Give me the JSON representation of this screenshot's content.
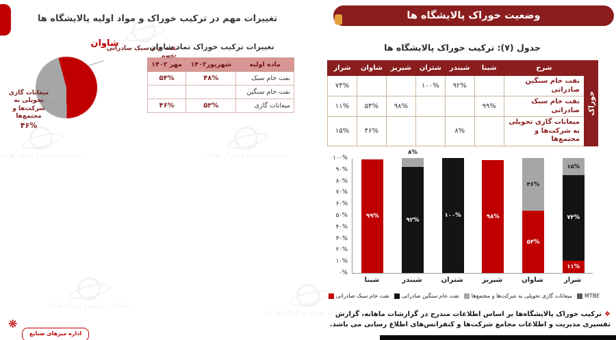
{
  "banner": {
    "title": "وضعیت خوراک پالایشگاه ها"
  },
  "colors": {
    "banner_maroon": "#8a1e1e",
    "accent_gold": "#e5a23c",
    "series_red": "#c00000",
    "series_black": "#141414",
    "series_gray": "#a6a6a6"
  },
  "left": {
    "title": "تغییرات مهم در ترکیب خوراک و مواد اولیه پالایشگاه ها",
    "pie": {
      "title": "شاوان",
      "slices": [
        {
          "label": "نفت خام سبک صادراتی",
          "pct_label": "۵۴%",
          "value": 54,
          "color": "#c00000"
        },
        {
          "label": "میعانات گازی تحویلی به شرکت‌ها و مجتمع‌ها",
          "pct_label": "۴۶%",
          "value": 46,
          "color": "#a6a6a6"
        }
      ]
    },
    "mini_table": {
      "title": "تغییرات ترکیب خوراک نماد شاوان",
      "headers": [
        "ماده اولیه",
        "شهریور۱۴۰۲",
        "مهر ۱۴۰۲"
      ],
      "rows": [
        [
          "نفت خام سبک",
          "۴۸%",
          "۵۴%"
        ],
        [
          "نفت خام سنگین",
          "",
          ""
        ],
        [
          "میعانات گازی",
          "۵۲%",
          "۴۶%"
        ]
      ]
    }
  },
  "main_table": {
    "caption": "جدول (۷): ترکیب خوراک پالایشگاه ها",
    "group_label": "خوراک",
    "headers": [
      "شرح",
      "شبنا",
      "شبندر",
      "شتران",
      "شبریز",
      "شاوان",
      "شراز"
    ],
    "rows": [
      {
        "label": "نفت خام سنگین صادراتی",
        "values": [
          "",
          "۹۲%",
          "۱۰۰%",
          "",
          "",
          "۷۴%"
        ]
      },
      {
        "label": "نفت خام سبک صادراتی",
        "values": [
          "۹۹%",
          "",
          "",
          "۹۸%",
          "۵۴%",
          "۱۱%"
        ]
      },
      {
        "label": "میعانات گازی تحویلی به شرکت‌ها و مجتمع‌ها",
        "values": [
          "",
          "۸%",
          "",
          "",
          "۴۶%",
          "۱۵%"
        ]
      }
    ]
  },
  "chart_data": {
    "type": "bar",
    "stacked": true,
    "categories": [
      "شبنا",
      "شبندر",
      "شتران",
      "شبریز",
      "شاوان",
      "شراز"
    ],
    "series": [
      {
        "name": "نفت خام سبک صادراتی",
        "color": "#c00000",
        "label_color": "#ffffff",
        "values": [
          99,
          0,
          0,
          98,
          54,
          11
        ]
      },
      {
        "name": "نفت خام سنگین صادراتی",
        "color": "#141414",
        "label_color": "#ffffff",
        "values": [
          0,
          92,
          100,
          0,
          0,
          74
        ]
      },
      {
        "name": "میعانات گازی تحویلی به شرکت‌ها و مجتمع‌ها",
        "color": "#a6a6a6",
        "label_color": "#1a1a1a",
        "values": [
          0,
          8,
          0,
          0,
          46,
          15
        ]
      },
      {
        "name": "MTBE",
        "color": "#595959",
        "label_color": "#ffffff",
        "values": [
          0,
          0,
          0,
          0,
          0,
          0
        ]
      }
    ],
    "title": "",
    "xlabel": "",
    "ylabel": "",
    "ylim": [
      0,
      100
    ],
    "ytick_step": 10,
    "grid": false,
    "legend_position": "bottom"
  },
  "footnote": {
    "bullet": "❖",
    "text": "ترکیب خوراک پالایشگاه‌ها بر اساس اطلاعات مندرج در گزارشات ماهانه، گزارش تفسیری مدیریت و اطلاعات مجامع شرکت‌ها و کنفرانس‌های اطلاع رسانی می باشد."
  },
  "watermark": {
    "text": "سازمان بورس و اوراق بهادار"
  },
  "badge": {
    "text": "اداره میزهای صنایع"
  }
}
